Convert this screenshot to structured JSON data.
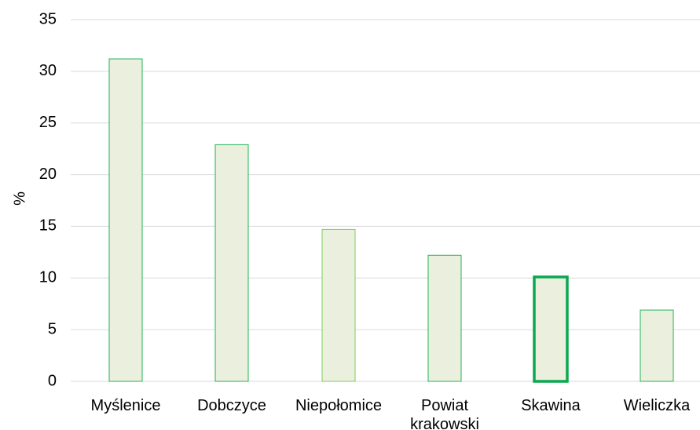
{
  "chart_data": {
    "type": "bar",
    "title": "",
    "xlabel": "",
    "ylabel": "%",
    "ylim": [
      0,
      35
    ],
    "yticks": [
      0,
      5,
      10,
      15,
      20,
      25,
      30,
      35
    ],
    "grid": true,
    "categories": [
      [
        "Myślenice"
      ],
      [
        "Dobczyce"
      ],
      [
        "Niepołomice"
      ],
      [
        "Powiat",
        "krakowski"
      ],
      [
        "Skawina"
      ],
      [
        "Wieliczka"
      ]
    ],
    "values": [
      31.2,
      22.9,
      14.7,
      12.2,
      10.1,
      6.9
    ],
    "highlight_index": 4,
    "colors": {
      "bar_fill": "#ebf0de",
      "bar_stroke": "#1fb356",
      "bar_stroke_light": "#7ccc5c",
      "highlight_stroke": "#0aa84f",
      "grid": "#d9d9d9"
    }
  }
}
